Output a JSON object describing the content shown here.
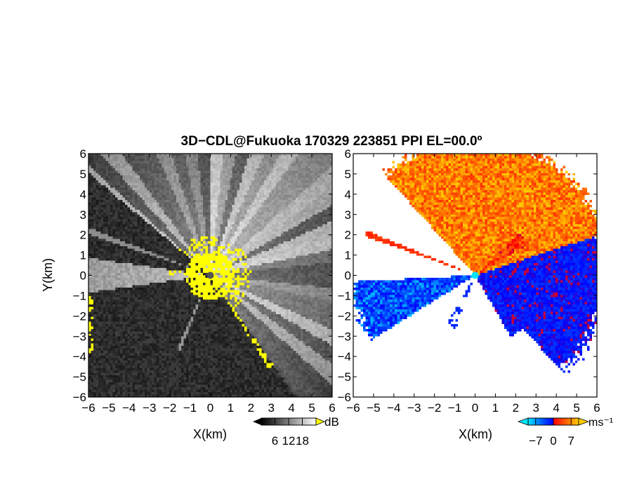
{
  "title": "3D−CDL@Fukuoka 170329 223851 PPI EL=00.0º",
  "chart_data": [
    {
      "type": "heatmap",
      "field": "reflectivity (grayscale)",
      "xlabel": "X(km)",
      "ylabel": "Y(km)",
      "xlim": [
        -6,
        6
      ],
      "ylim": [
        -6,
        6
      ],
      "x_ticks": [
        -6,
        -5,
        -4,
        -3,
        -2,
        -1,
        0,
        1,
        2,
        3,
        4,
        5,
        6
      ],
      "y_ticks": [
        -6,
        -5,
        -4,
        -3,
        -2,
        -1,
        0,
        1,
        2,
        3,
        4,
        5,
        6
      ],
      "colorbar": {
        "unit": "dB",
        "ticks": [
          6,
          12,
          18
        ],
        "range": [
          0,
          24
        ],
        "colors": [
          "#000000",
          "#ffffff"
        ],
        "over_color": "#ffff00"
      },
      "highlight_color": "#ffff00"
    },
    {
      "type": "heatmap",
      "field": "radial velocity",
      "xlabel": "X(km)",
      "ylabel": "",
      "xlim": [
        -6,
        6
      ],
      "ylim": [
        -6,
        6
      ],
      "x_ticks": [
        -6,
        -5,
        -4,
        -3,
        -2,
        -1,
        0,
        1,
        2,
        3,
        4,
        5,
        6
      ],
      "y_ticks": [
        -6,
        -5,
        -4,
        -3,
        -2,
        -1,
        0,
        1,
        2,
        3,
        4,
        5,
        6
      ],
      "colorbar": {
        "unit": "ms⁻¹",
        "ticks": [
          -7,
          0,
          7
        ],
        "range": [
          -10,
          10
        ],
        "colors": [
          "#00e5ff",
          "#0050ff",
          "#0000ff",
          "#ff0000",
          "#ff6000",
          "#ffcc00"
        ]
      }
    }
  ]
}
